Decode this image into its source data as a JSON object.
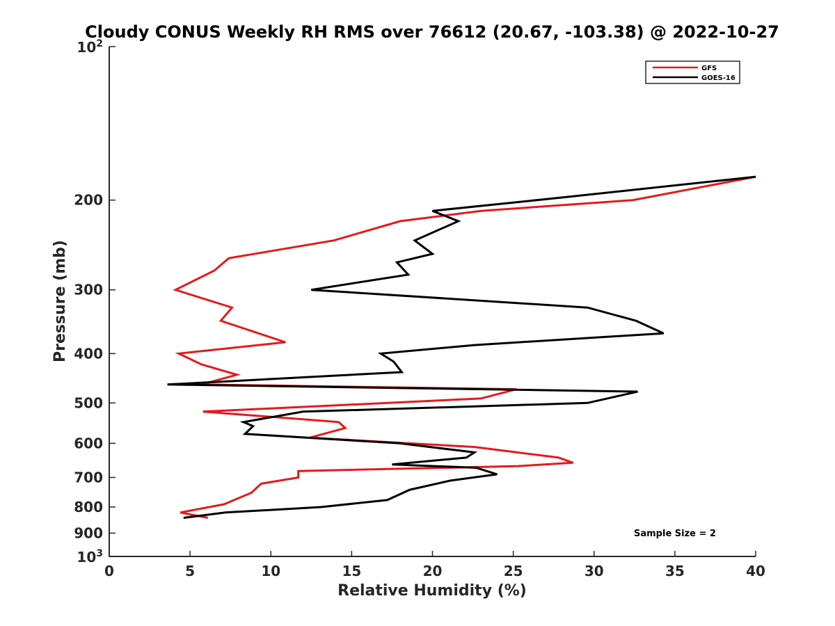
{
  "chart_data": {
    "type": "line",
    "title": "Cloudy CONUS Weekly RH RMS over 76612 (20.67, -103.38) @ 2022-10-27",
    "xlabel": "Relative Humidity (%)",
    "ylabel": "Pressure (mb)",
    "xlim": [
      0,
      40
    ],
    "ylim": [
      100,
      1000
    ],
    "yscale": "log",
    "y_reversed": true,
    "grid": false,
    "legend_position": "top-right",
    "x_ticks": [
      {
        "value": 0,
        "label": "0"
      },
      {
        "value": 5,
        "label": "5"
      },
      {
        "value": 10,
        "label": "10"
      },
      {
        "value": 15,
        "label": "15"
      },
      {
        "value": 20,
        "label": "20"
      },
      {
        "value": 25,
        "label": "25"
      },
      {
        "value": 30,
        "label": "30"
      },
      {
        "value": 35,
        "label": "35"
      },
      {
        "value": 40,
        "label": "40"
      }
    ],
    "y_ticks": [
      {
        "value": 100,
        "base": "10",
        "exp": "2"
      },
      {
        "value": 200,
        "label": "200"
      },
      {
        "value": 300,
        "label": "300"
      },
      {
        "value": 400,
        "label": "400"
      },
      {
        "value": 500,
        "label": "500"
      },
      {
        "value": 600,
        "label": "600"
      },
      {
        "value": 700,
        "label": "700"
      },
      {
        "value": 800,
        "label": "800"
      },
      {
        "value": 900,
        "label": "900"
      },
      {
        "value": 1000,
        "base": "10",
        "exp": "3"
      }
    ],
    "series": [
      {
        "name": "GFS",
        "color": "#e41a1c",
        "x": [
          40.0,
          32.4,
          23.0,
          18.0,
          13.9,
          7.4,
          6.5,
          4.1,
          7.6,
          6.9,
          10.9,
          4.3,
          5.7,
          7.9,
          5.7,
          25.2,
          23.0,
          5.8,
          14.2,
          14.6,
          12.4,
          22.6,
          27.8,
          28.7,
          25.3,
          11.7,
          11.7,
          9.4,
          8.8,
          7.1,
          4.4,
          6.1
        ],
        "y": [
          180,
          200,
          210,
          220,
          240,
          260,
          275,
          300,
          325,
          345,
          380,
          400,
          420,
          440,
          460,
          470,
          490,
          520,
          545,
          560,
          585,
          610,
          640,
          655,
          665,
          680,
          700,
          720,
          750,
          790,
          820,
          840
        ]
      },
      {
        "name": "GOES-16",
        "color": "#000000",
        "x": [
          40.0,
          28.5,
          20.0,
          21.6,
          18.9,
          20.0,
          17.8,
          18.5,
          12.5,
          29.6,
          32.6,
          34.3,
          22.6,
          16.8,
          17.6,
          18.1,
          3.6,
          32.7,
          29.6,
          12.0,
          8.3,
          8.9,
          8.4,
          18.0,
          22.6,
          22.1,
          17.5,
          22.7,
          24.0,
          21.1,
          18.6,
          17.2,
          13.1,
          7.2,
          4.6
        ],
        "y": [
          180,
          197,
          210,
          220,
          240,
          255,
          265,
          280,
          300,
          325,
          345,
          365,
          385,
          400,
          415,
          435,
          460,
          475,
          500,
          520,
          545,
          555,
          575,
          600,
          625,
          640,
          660,
          670,
          690,
          710,
          740,
          775,
          800,
          820,
          840
        ]
      }
    ],
    "annotations": [
      "Sample Size = 2"
    ]
  }
}
